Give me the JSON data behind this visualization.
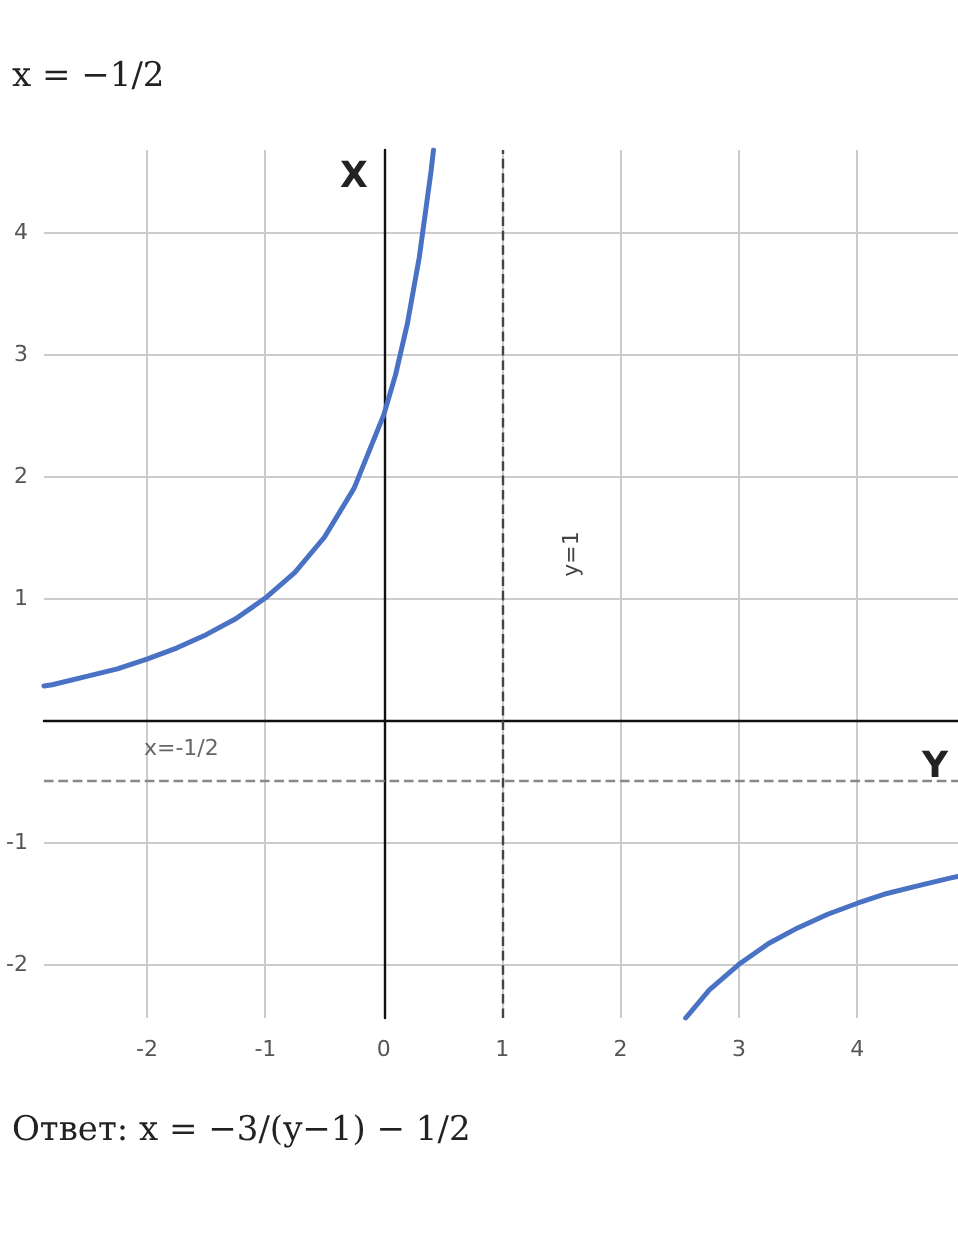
{
  "chart_data": {
    "type": "line",
    "xlabel": "Y",
    "ylabel": "X",
    "annotations": [
      "x = −1/2",
      "Ответ: x = −3/(y−1) − 1/2"
    ],
    "xlim": [
      -2.87,
      4.85
    ],
    "xticks": [
      -2,
      -1,
      0,
      1,
      2,
      3,
      4
    ],
    "ylim": [
      -2.44,
      4.67
    ],
    "yticks": [
      -2,
      -1,
      1,
      2,
      3,
      4
    ],
    "grid": true,
    "line_style": "solid",
    "marker": "none",
    "ref_lines": [
      {
        "axis": "x",
        "value": 1,
        "label": "y=1",
        "color": "#444444",
        "line_style": "dashed"
      },
      {
        "axis": "y",
        "value": -0.5,
        "label": "x=-1/2",
        "color": "#888888",
        "line_style": "dashed"
      }
    ],
    "series": [
      {
        "color": "#4a72c4",
        "x": [
          -2.87,
          -2.8,
          -2.5,
          -2.25,
          -2,
          -1.75,
          -1.5,
          -1.25,
          -1,
          -0.75,
          -0.5,
          -0.25,
          0,
          0.1,
          0.2,
          0.3,
          0.4,
          0.42
        ],
        "values": [
          0.28,
          0.29,
          0.36,
          0.42,
          0.5,
          0.59,
          0.7,
          0.83,
          1.0,
          1.21,
          1.5,
          1.9,
          2.5,
          2.83,
          3.25,
          3.79,
          4.5,
          4.67
        ]
      },
      {
        "color": "#4a72c4",
        "x": [
          2.55,
          2.75,
          3,
          3.25,
          3.5,
          3.75,
          4,
          4.25,
          4.5,
          4.8,
          4.85
        ],
        "values": [
          -2.44,
          -2.21,
          -2.0,
          -1.83,
          -1.7,
          -1.59,
          -1.5,
          -1.42,
          -1.36,
          -1.29,
          -1.28
        ]
      }
    ]
  }
}
